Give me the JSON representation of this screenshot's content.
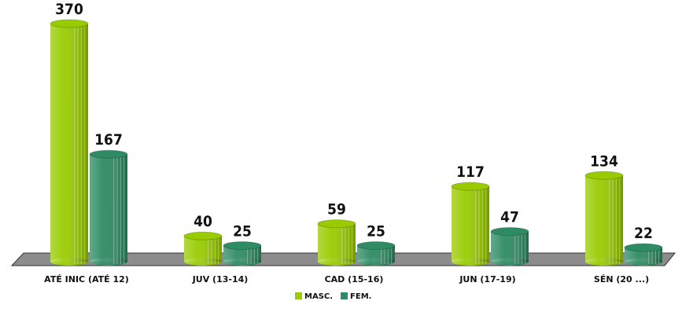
{
  "chart_data": {
    "type": "bar",
    "categories": [
      "ATÉ INIC (ATÉ 12)",
      "JUV (13-14)",
      "CAD (15-16)",
      "JUN (17-19)",
      "SÉN (20 ...)"
    ],
    "series": [
      {
        "name": "MASC.",
        "color": "#99cc00",
        "values": [
          370,
          40,
          59,
          117,
          134
        ]
      },
      {
        "name": "FEM.",
        "color": "#2e8b63",
        "values": [
          167,
          25,
          25,
          47,
          22
        ]
      }
    ],
    "legend": "bottom"
  }
}
